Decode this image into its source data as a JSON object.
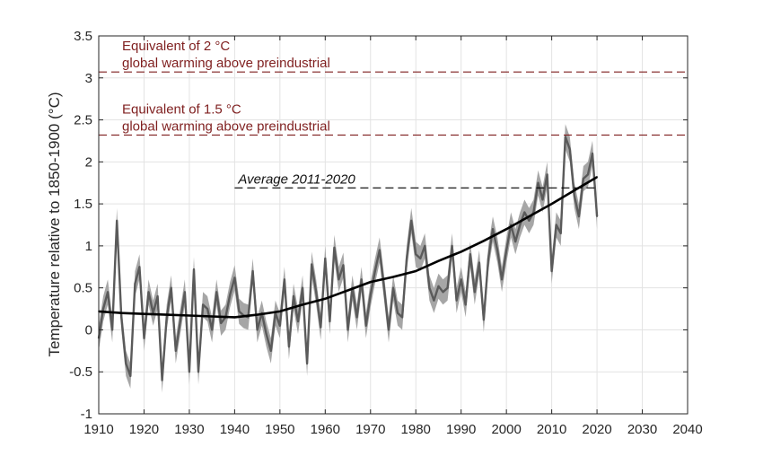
{
  "chart_data": {
    "type": "line",
    "title": "",
    "xlabel": "",
    "ylabel": "Temperature relative to 1850-1900 (°C)",
    "xlim": [
      1910,
      2040
    ],
    "ylim": [
      -1,
      3.5
    ],
    "xticks": [
      1910,
      1920,
      1930,
      1940,
      1950,
      1960,
      1970,
      1980,
      1990,
      2000,
      2010,
      2020,
      2030,
      2040
    ],
    "yticks": [
      -1,
      -0.5,
      0,
      0.5,
      1,
      1.5,
      2,
      2.5,
      3,
      3.5
    ],
    "grid": true,
    "legend": "none",
    "colors": {
      "annual": "#5a5a5a",
      "band": "#a6a6a6",
      "trend": "#000000",
      "threshold": "#7f1f1f",
      "average": "#000000",
      "grid": "#e3e3e3",
      "axis": "#262626"
    },
    "series": [
      {
        "x": [
          1910,
          1911,
          1912,
          1913,
          1914,
          1915,
          1916,
          1917,
          1918,
          1919,
          1920,
          1921,
          1922,
          1923,
          1924,
          1925,
          1926,
          1927,
          1928,
          1929,
          1930,
          1931,
          1932,
          1933,
          1934,
          1935,
          1936,
          1937,
          1938,
          1939,
          1940,
          1941,
          1942,
          1943,
          1944,
          1945,
          1946,
          1947,
          1948,
          1949,
          1950,
          1951,
          1952,
          1953,
          1954,
          1955,
          1956,
          1957,
          1958,
          1959,
          1960,
          1961,
          1962,
          1963,
          1964,
          1965,
          1966,
          1967,
          1968,
          1969,
          1970,
          1971,
          1972,
          1973,
          1974,
          1975,
          1976,
          1977,
          1978,
          1979,
          1980,
          1981,
          1982,
          1983,
          1984,
          1985,
          1986,
          1987,
          1988,
          1989,
          1990,
          1991,
          1992,
          1993,
          1994,
          1995,
          1996,
          1997,
          1998,
          1999,
          2000,
          2001,
          2002,
          2003,
          2004,
          2005,
          2006,
          2007,
          2008,
          2009,
          2010,
          2011,
          2012,
          2013,
          2014,
          2015,
          2016,
          2017,
          2018,
          2019,
          2020
        ],
        "values": [
          -0.1,
          0.25,
          0.45,
          0.0,
          1.3,
          0.15,
          -0.4,
          -0.55,
          0.55,
          0.75,
          -0.1,
          0.45,
          0.2,
          0.4,
          -0.6,
          0.15,
          0.5,
          -0.25,
          0.1,
          0.45,
          -0.5,
          0.72,
          -0.5,
          0.3,
          0.25,
          0.0,
          0.45,
          0.08,
          0.15,
          0.42,
          0.62,
          0.22,
          0.17,
          0.15,
          0.7,
          0.0,
          0.2,
          -0.05,
          -0.25,
          0.2,
          0.05,
          0.6,
          -0.2,
          0.4,
          0.1,
          0.5,
          -0.4,
          0.78,
          0.45,
          0.03,
          0.85,
          0.1,
          0.98,
          0.6,
          0.77,
          0.0,
          0.5,
          0.15,
          0.6,
          0.05,
          0.42,
          0.7,
          0.95,
          0.5,
          0.0,
          0.5,
          0.2,
          0.15,
          0.85,
          1.3,
          0.9,
          0.85,
          1.0,
          0.5,
          0.35,
          0.52,
          0.45,
          0.5,
          1.0,
          0.35,
          0.6,
          0.3,
          0.9,
          0.45,
          0.8,
          0.12,
          0.85,
          1.2,
          0.95,
          0.6,
          0.95,
          1.25,
          1.05,
          1.25,
          1.4,
          1.3,
          1.4,
          1.75,
          1.55,
          1.85,
          0.7,
          1.25,
          1.15,
          2.3,
          2.15,
          1.6,
          1.35,
          1.8,
          1.85,
          2.1,
          1.35
        ],
        "band_halfwidth": 0.15
      },
      {
        "x": [
          1910,
          1915,
          1920,
          1925,
          1930,
          1935,
          1940,
          1945,
          1950,
          1955,
          1960,
          1965,
          1970,
          1975,
          1980,
          1985,
          1990,
          1995,
          2000,
          2005,
          2010,
          2015,
          2020
        ],
        "values": [
          0.22,
          0.2,
          0.19,
          0.18,
          0.17,
          0.16,
          0.15,
          0.18,
          0.22,
          0.3,
          0.37,
          0.47,
          0.57,
          0.63,
          0.7,
          0.82,
          0.93,
          1.06,
          1.2,
          1.35,
          1.5,
          1.66,
          1.82
        ]
      }
    ],
    "annotations": [
      {
        "text_line1": "Equivalent of 2 °C",
        "text_line2": "global warming above preindustrial",
        "y": 3.07,
        "x_from": 1910,
        "x_to": 2040
      },
      {
        "text_line1": "Equivalent of 1.5 °C",
        "text_line2": "global warming above preindustrial",
        "y": 2.32,
        "x_from": 1910,
        "x_to": 2040
      },
      {
        "text": "Average 2011-2020",
        "y": 1.69,
        "x_from": 1940,
        "x_to": 2020
      }
    ]
  }
}
